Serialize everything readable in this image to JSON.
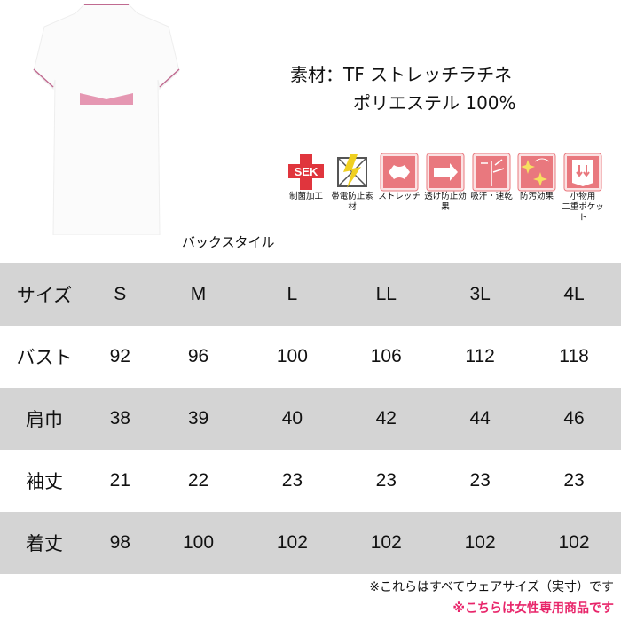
{
  "product": {
    "caption": "バックスタイル"
  },
  "material": {
    "line1": "素材：TF ストレッチラチネ",
    "line2": "ポリエステル 100%"
  },
  "features": [
    {
      "label": "制菌加工",
      "icon": "sek-icon"
    },
    {
      "label": "帯電防止素材",
      "icon": "antistatic-icon"
    },
    {
      "label": "ストレッチ",
      "icon": "stretch-icon"
    },
    {
      "label": "透け防止効果",
      "icon": "see-through-prevention-icon"
    },
    {
      "label": "吸汗・速乾",
      "icon": "sweat-absorb-icon"
    },
    {
      "label": "防汚効果",
      "icon": "stain-resistant-icon"
    },
    {
      "label": "小物用\n二重ポケット",
      "icon": "double-pocket-icon"
    }
  ],
  "table": {
    "header": [
      "サイズ",
      "S",
      "M",
      "L",
      "LL",
      "3L",
      "4L"
    ],
    "rows": [
      [
        "バスト",
        "92",
        "96",
        "100",
        "106",
        "112",
        "118"
      ],
      [
        "肩巾",
        "38",
        "39",
        "40",
        "42",
        "44",
        "46"
      ],
      [
        "袖丈",
        "21",
        "22",
        "23",
        "23",
        "23",
        "23"
      ],
      [
        "着丈",
        "98",
        "100",
        "102",
        "102",
        "102",
        "102"
      ]
    ]
  },
  "notes": {
    "note1": "※これらはすべてウェアサイズ（実寸）です",
    "note2": "※こちらは女性専用商品です"
  },
  "colors": {
    "icon_pink": "#e9787e",
    "accent_pink": "#e8256a",
    "row_gray": "#d4d4d4"
  }
}
